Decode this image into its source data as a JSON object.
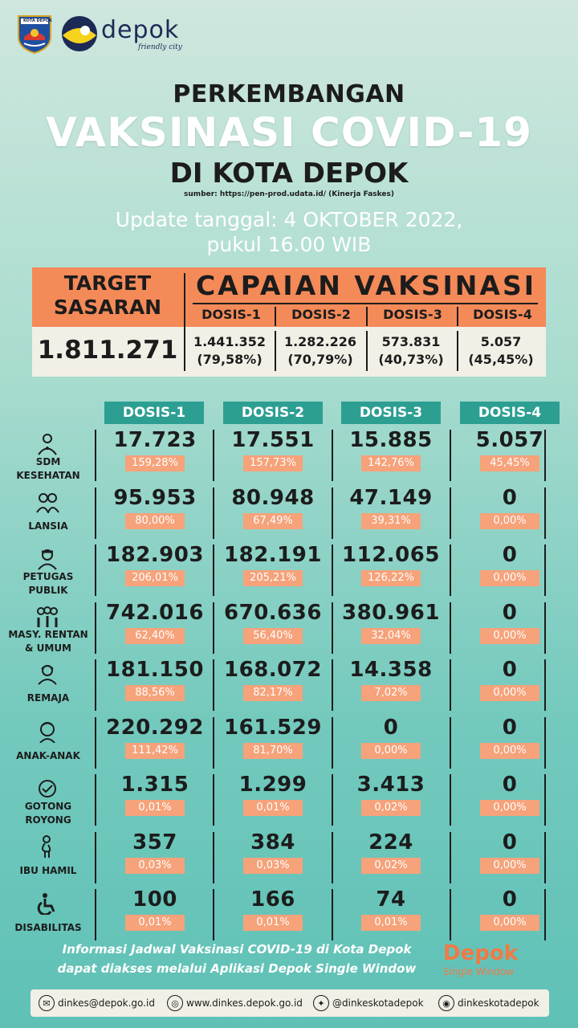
{
  "header": {
    "crest_text": "KOTA DEPOK",
    "logo_word": "depok",
    "logo_tagline": "friendly city"
  },
  "title": {
    "line1": "PERKEMBANGAN",
    "line2": "VAKSINASI COVID-19",
    "line3": "DI KOTA DEPOK",
    "source": "sumber: https://pen-prod.udata.id/ (Kinerja Faskes)",
    "update1": "Update tanggal: 4 OKTOBER 2022,",
    "update2": "pukul 16.00 WIB"
  },
  "summary": {
    "target_label1": "TARGET",
    "target_label2": "SASARAN",
    "capaian_label": "CAPAIAN VAKSINASI",
    "target_value": "1.811.271",
    "doses": [
      {
        "label": "DOSIS-1",
        "value": "1.441.352",
        "pct": "(79,58%)"
      },
      {
        "label": "DOSIS-2",
        "value": "1.282.226",
        "pct": "(70,79%)"
      },
      {
        "label": "DOSIS-3",
        "value": "573.831",
        "pct": "(40,73%)"
      },
      {
        "label": "DOSIS-4",
        "value": "5.057",
        "pct": "(45,45%)"
      }
    ]
  },
  "table": {
    "columns": [
      "DOSIS-1",
      "DOSIS-2",
      "DOSIS-3",
      "DOSIS-4"
    ],
    "rows": [
      {
        "label1": "SDM",
        "label2": "KESEHATAN",
        "icon": "medical-staff-icon",
        "cells": [
          {
            "v": "17.723",
            "p": "159,28%"
          },
          {
            "v": "17.551",
            "p": "157,73%"
          },
          {
            "v": "15.885",
            "p": "142,76%"
          },
          {
            "v": "5.057",
            "p": "45,45%"
          }
        ]
      },
      {
        "label1": "",
        "label2": "LANSIA",
        "icon": "elderly-icon",
        "cells": [
          {
            "v": "95.953",
            "p": "80,00%"
          },
          {
            "v": "80.948",
            "p": "67,49%"
          },
          {
            "v": "47.149",
            "p": "39,31%"
          },
          {
            "v": "0",
            "p": "0,00%"
          }
        ]
      },
      {
        "label1": "PETUGAS",
        "label2": "PUBLIK",
        "icon": "public-officer-icon",
        "cells": [
          {
            "v": "182.903",
            "p": "206,01%"
          },
          {
            "v": "182.191",
            "p": "205,21%"
          },
          {
            "v": "112.065",
            "p": "126,22%"
          },
          {
            "v": "0",
            "p": "0,00%"
          }
        ]
      },
      {
        "label1": "MASY. RENTAN",
        "label2": "& UMUM",
        "icon": "community-icon",
        "cells": [
          {
            "v": "742.016",
            "p": "62,40%"
          },
          {
            "v": "670.636",
            "p": "56,40%"
          },
          {
            "v": "380.961",
            "p": "32,04%"
          },
          {
            "v": "0",
            "p": "0,00%"
          }
        ]
      },
      {
        "label1": "",
        "label2": "REMAJA",
        "icon": "teen-icon",
        "cells": [
          {
            "v": "181.150",
            "p": "88,56%"
          },
          {
            "v": "168.072",
            "p": "82,17%"
          },
          {
            "v": "14.358",
            "p": "7,02%"
          },
          {
            "v": "0",
            "p": "0,00%"
          }
        ]
      },
      {
        "label1": "",
        "label2": "ANAK-ANAK",
        "icon": "child-icon",
        "cells": [
          {
            "v": "220.292",
            "p": "111,42%"
          },
          {
            "v": "161.529",
            "p": "81,70%"
          },
          {
            "v": "0",
            "p": "0,00%"
          },
          {
            "v": "0",
            "p": "0,00%"
          }
        ]
      },
      {
        "label1": "GOTONG",
        "label2": "ROYONG",
        "icon": "cooperation-icon",
        "cells": [
          {
            "v": "1.315",
            "p": "0,01%"
          },
          {
            "v": "1.299",
            "p": "0,01%"
          },
          {
            "v": "3.413",
            "p": "0,02%"
          },
          {
            "v": "0",
            "p": "0,00%"
          }
        ]
      },
      {
        "label1": "",
        "label2": "IBU HAMIL",
        "icon": "pregnant-icon",
        "cells": [
          {
            "v": "357",
            "p": "0,03%"
          },
          {
            "v": "384",
            "p": "0,03%"
          },
          {
            "v": "224",
            "p": "0,02%"
          },
          {
            "v": "0",
            "p": "0,00%"
          }
        ]
      },
      {
        "label1": "",
        "label2": "DISABILITAS",
        "icon": "wheelchair-icon",
        "cells": [
          {
            "v": "100",
            "p": "0,01%"
          },
          {
            "v": "166",
            "p": "0,01%"
          },
          {
            "v": "74",
            "p": "0,01%"
          },
          {
            "v": "0",
            "p": "0,00%"
          }
        ]
      }
    ]
  },
  "footer": {
    "info1": "Informasi Jadwal Vaksinasi COVID-19 di Kota Depok",
    "info2": "dapat diakses melalui Aplikasi Depok Single Window",
    "sw_word": "Depok",
    "sw_sub": "Single Window",
    "email": "dinkes@depok.go.id",
    "website": "www.dinkes.depok.go.id",
    "twitter": "@dinkeskotadepok",
    "instagram": "dinkeskotadepok"
  },
  "colors": {
    "accent_orange": "#f48a58",
    "pct_orange": "#f6a27a",
    "teal_header": "#2c9f92"
  }
}
